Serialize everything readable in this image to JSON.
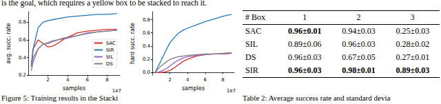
{
  "text": "is the goal, which requires a yellow box to be stacked to reach it.",
  "chart_data": [
    {
      "type": "line",
      "ylabel": "avg. succ. rate",
      "xlabel": "samples",
      "annotation": "1e7",
      "x": [
        0.3,
        0.5,
        1,
        1.5,
        2,
        2.5,
        3,
        3.5,
        4,
        5,
        6,
        7,
        8,
        9
      ],
      "xlim": [
        0,
        9.3
      ],
      "xticks": [
        2,
        4,
        6,
        8
      ],
      "ylim": [
        0.2,
        0.92
      ],
      "yticks": [
        0.2,
        0.4,
        0.6,
        0.8
      ],
      "legend": "right",
      "grid": false,
      "series": [
        {
          "name": "SAC",
          "color": "#d62728",
          "values": [
            0.3,
            0.5,
            0.6,
            0.56,
            0.52,
            0.53,
            0.56,
            0.6,
            0.63,
            0.68,
            0.7,
            0.71,
            0.72,
            0.72
          ]
        },
        {
          "name": "SIR",
          "color": "#1f77b4",
          "values": [
            0.3,
            0.5,
            0.74,
            0.8,
            0.82,
            0.83,
            0.84,
            0.85,
            0.86,
            0.87,
            0.88,
            0.89,
            0.89,
            0.9
          ]
        },
        {
          "name": "SIL",
          "color": "#9467bd",
          "values": [
            0.25,
            0.35,
            0.5,
            0.55,
            0.56,
            0.58,
            0.6,
            0.61,
            0.62,
            0.65,
            0.68,
            0.69,
            0.7,
            0.71
          ]
        },
        {
          "name": "DS",
          "color": "#7f7f7f",
          "values": [
            0.3,
            0.4,
            0.5,
            0.55,
            0.57,
            0.59,
            0.6,
            0.62,
            0.63,
            0.65,
            0.67,
            0.69,
            0.7,
            0.71
          ]
        }
      ]
    },
    {
      "type": "line",
      "ylabel": "hard succ. rate",
      "xlabel": "samples",
      "annotation": "1e7",
      "x": [
        0.3,
        0.5,
        1,
        1.5,
        2,
        2.5,
        3,
        3.5,
        4,
        5,
        6,
        7,
        8,
        9
      ],
      "xlim": [
        0,
        9.3
      ],
      "xticks": [
        2,
        4,
        6,
        8
      ],
      "ylim": [
        -0.04,
        0.92
      ],
      "yticks": [
        {
          "value": 0,
          "label": "0.0"
        },
        0.2,
        0.4,
        0.6,
        0.8
      ],
      "grid": false,
      "series": [
        {
          "name": "SAC",
          "color": "#d62728",
          "values": [
            0,
            0,
            0,
            0.01,
            0.03,
            0.07,
            0.12,
            0.17,
            0.2,
            0.25,
            0.27,
            0.28,
            0.28,
            0.29
          ]
        },
        {
          "name": "SIR",
          "color": "#1f77b4",
          "values": [
            0,
            0.05,
            0.18,
            0.32,
            0.45,
            0.53,
            0.6,
            0.64,
            0.67,
            0.72,
            0.77,
            0.81,
            0.85,
            0.88
          ]
        },
        {
          "name": "SIL",
          "color": "#9467bd",
          "values": [
            0,
            0,
            0.02,
            0.05,
            0.1,
            0.15,
            0.19,
            0.22,
            0.24,
            0.26,
            0.27,
            0.28,
            0.28,
            0.29
          ]
        },
        {
          "name": "DS",
          "color": "#7f7f7f",
          "values": [
            0,
            0.03,
            0.1,
            0.15,
            0.2,
            0.22,
            0.24,
            0.25,
            0.26,
            0.27,
            0.28,
            0.28,
            0.29,
            0.3
          ]
        }
      ]
    }
  ],
  "table": {
    "header": [
      "# Box",
      "1",
      "2",
      "3"
    ],
    "rows": [
      [
        {
          "text": "SAC"
        },
        {
          "text": "0.96±0.01",
          "bold": true
        },
        {
          "text": "0.94±0.03"
        },
        {
          "text": "0.25±0.03"
        }
      ],
      [
        {
          "text": "SIL"
        },
        {
          "text": "0.89±0.06"
        },
        {
          "text": "0.96±0.03"
        },
        {
          "text": "0.28±0.02"
        }
      ],
      [
        {
          "text": "DS"
        },
        {
          "text": "0.96±0.03"
        },
        {
          "text": "0.67±0.05"
        },
        {
          "text": "0.27±0.01"
        }
      ],
      [
        {
          "text": "SIR"
        },
        {
          "text": "0.96±0.03",
          "bold": true
        },
        {
          "text": "0.98±0.01",
          "bold": true
        },
        {
          "text": "0.89±0.03",
          "bold": true
        }
      ]
    ]
  },
  "captions": [
    "Figure 5: Training results in the Stacki",
    "Table 2: Average success rate and standard devia"
  ]
}
